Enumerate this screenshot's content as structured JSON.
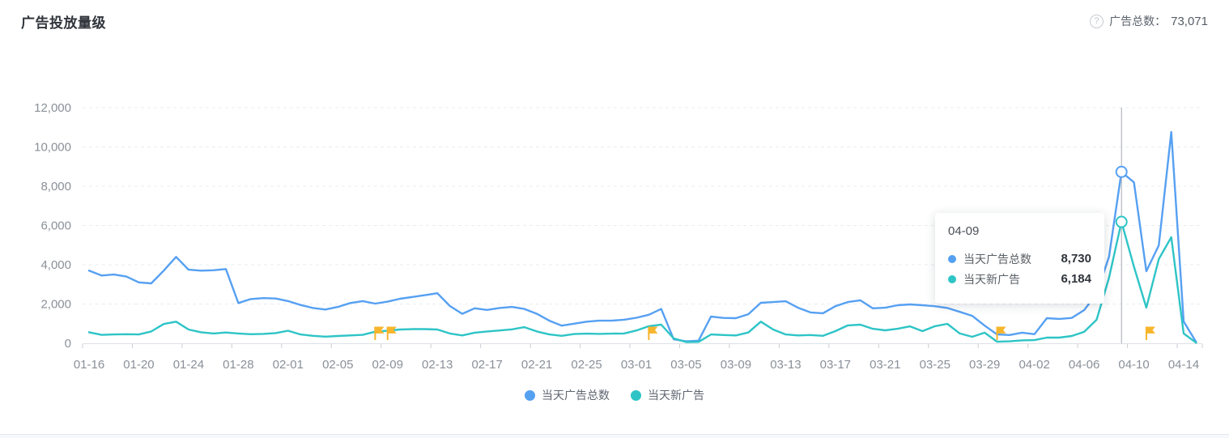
{
  "header": {
    "title": "广告投放量级",
    "help_icon": "question-circle-icon",
    "total_label": "广告总数：",
    "total_value": "73,071"
  },
  "legend": {
    "items": [
      {
        "label": "当天广告总数",
        "color": "#56A0F2"
      },
      {
        "label": "当天新广告",
        "color": "#2EC4C6"
      }
    ]
  },
  "tooltip": {
    "title": "04-09",
    "rows": [
      {
        "label": "当天广告总数",
        "value": "8,730",
        "color": "#56A0F2"
      },
      {
        "label": "当天新广告",
        "value": "6,184",
        "color": "#2EC4C6"
      }
    ]
  },
  "chart_data": {
    "type": "line",
    "title": "广告投放量级",
    "xlabel": "",
    "ylabel": "",
    "ylim": [
      0,
      12000
    ],
    "y_ticks": [
      0,
      2000,
      4000,
      6000,
      8000,
      10000,
      12000
    ],
    "y_tick_labels": [
      "0",
      "2,000",
      "4,000",
      "6,000",
      "8,000",
      "10,000",
      "12,000"
    ],
    "grid": "horizontal dashed",
    "legend_position": "bottom center",
    "x_tick_labels": [
      "01-16",
      "01-20",
      "01-24",
      "01-28",
      "02-01",
      "02-05",
      "02-09",
      "02-13",
      "02-17",
      "02-21",
      "02-25",
      "03-01",
      "03-05",
      "03-09",
      "03-13",
      "03-17",
      "03-21",
      "03-25",
      "03-29",
      "04-02",
      "04-06",
      "04-10",
      "04-14"
    ],
    "x": [
      "01-16",
      "01-17",
      "01-18",
      "01-19",
      "01-20",
      "01-21",
      "01-22",
      "01-23",
      "01-24",
      "01-25",
      "01-26",
      "01-27",
      "01-28",
      "01-29",
      "01-30",
      "01-31",
      "02-01",
      "02-02",
      "02-03",
      "02-04",
      "02-05",
      "02-06",
      "02-07",
      "02-08",
      "02-09",
      "02-10",
      "02-11",
      "02-12",
      "02-13",
      "02-14",
      "02-15",
      "02-16",
      "02-17",
      "02-18",
      "02-19",
      "02-20",
      "02-21",
      "02-22",
      "02-23",
      "02-24",
      "02-25",
      "02-26",
      "02-27",
      "02-28",
      "03-01",
      "03-02",
      "03-03",
      "03-04",
      "03-05",
      "03-06",
      "03-07",
      "03-08",
      "03-09",
      "03-10",
      "03-11",
      "03-12",
      "03-13",
      "03-14",
      "03-15",
      "03-16",
      "03-17",
      "03-18",
      "03-19",
      "03-20",
      "03-21",
      "03-22",
      "03-23",
      "03-24",
      "03-25",
      "03-26",
      "03-27",
      "03-28",
      "03-29",
      "03-30",
      "03-31",
      "04-01",
      "04-02",
      "04-03",
      "04-04",
      "04-05",
      "04-06",
      "04-07",
      "04-08",
      "04-09",
      "04-10",
      "04-11",
      "04-12",
      "04-13",
      "04-14",
      "04-15"
    ],
    "series": [
      {
        "name": "当天广告总数",
        "color": "#56A0F2",
        "values": [
          3700,
          3450,
          3500,
          3400,
          3100,
          3050,
          3700,
          4400,
          3750,
          3700,
          3720,
          3780,
          2050,
          2250,
          2300,
          2280,
          2150,
          1950,
          1800,
          1720,
          1850,
          2050,
          2150,
          2020,
          2120,
          2270,
          2360,
          2450,
          2550,
          1900,
          1500,
          1780,
          1700,
          1800,
          1850,
          1750,
          1500,
          1150,
          900,
          1000,
          1100,
          1150,
          1150,
          1200,
          1300,
          1450,
          1750,
          200,
          100,
          130,
          1360,
          1290,
          1280,
          1480,
          2060,
          2100,
          2140,
          1810,
          1570,
          1530,
          1890,
          2100,
          2190,
          1780,
          1810,
          1940,
          1980,
          1940,
          1890,
          1800,
          1600,
          1400,
          900,
          450,
          420,
          540,
          460,
          1280,
          1240,
          1290,
          1690,
          2520,
          4410,
          8730,
          8200,
          3670,
          4990,
          10760,
          1110,
          60
        ]
      },
      {
        "name": "当天新广告",
        "color": "#2EC4C6",
        "values": [
          560,
          430,
          450,
          460,
          450,
          600,
          980,
          1100,
          700,
          560,
          500,
          550,
          500,
          460,
          480,
          520,
          640,
          450,
          380,
          340,
          370,
          400,
          430,
          590,
          640,
          700,
          720,
          720,
          700,
          500,
          400,
          540,
          600,
          650,
          710,
          820,
          600,
          450,
          380,
          470,
          490,
          480,
          490,
          500,
          650,
          870,
          950,
          250,
          60,
          70,
          450,
          420,
          400,
          550,
          1100,
          700,
          450,
          400,
          420,
          380,
          620,
          910,
          950,
          740,
          660,
          740,
          860,
          620,
          870,
          990,
          500,
          330,
          540,
          80,
          100,
          150,
          160,
          290,
          290,
          370,
          580,
          1200,
          3340,
          6184,
          3900,
          1815,
          4290,
          5400,
          500,
          30
        ]
      }
    ],
    "highlight": {
      "date": "04-09",
      "series_values": [
        8730,
        6184
      ]
    },
    "flags": {
      "dates": [
        "02-08",
        "02-09",
        "03-02",
        "03-30",
        "04-11"
      ],
      "color": "#F7B52C"
    }
  }
}
